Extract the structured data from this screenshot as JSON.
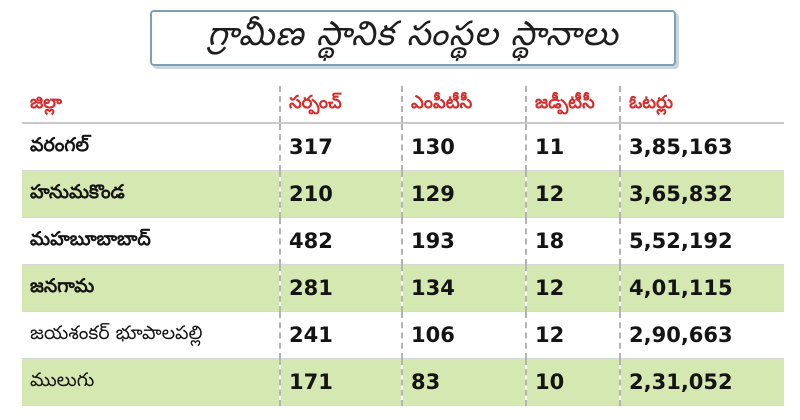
{
  "title": "గ్రామీణ స్థానిక సంస్థల స్థానాలు",
  "headers": [
    "జిల్లా",
    "సర్పంచ్",
    "ఎంపీటీసీ",
    "జడ్పీటీసీ",
    "ఓటర్లు"
  ],
  "rows": [
    {
      "district": "వరంగల్",
      "sarpanch": "317",
      "mptc": "130",
      "zptc": "11",
      "voters": "3,85,163"
    },
    {
      "district": "హనుమకొండ",
      "sarpanch": "210",
      "mptc": "129",
      "zptc": "12",
      "voters": "3,65,832"
    },
    {
      "district": "మహబూబాబాద్",
      "sarpanch": "482",
      "mptc": "193",
      "zptc": "18",
      "voters": "5,52,192"
    },
    {
      "district": "జనగామ",
      "sarpanch": "281",
      "mptc": "134",
      "zptc": "12",
      "voters": "4,01,115"
    },
    {
      "district": "జయశంకర్ భూపాలపల్లి",
      "sarpanch": "241",
      "mptc": "106",
      "zptc": "12",
      "voters": "2,90,663"
    },
    {
      "district": "ములుగు",
      "sarpanch": "171",
      "mptc": "83",
      "zptc": "10",
      "voters": "2,31,052"
    }
  ],
  "colors": {
    "header_text": "#d62c2c",
    "band_green": "#d6e8b1",
    "title_border": "#7e9fb4"
  }
}
